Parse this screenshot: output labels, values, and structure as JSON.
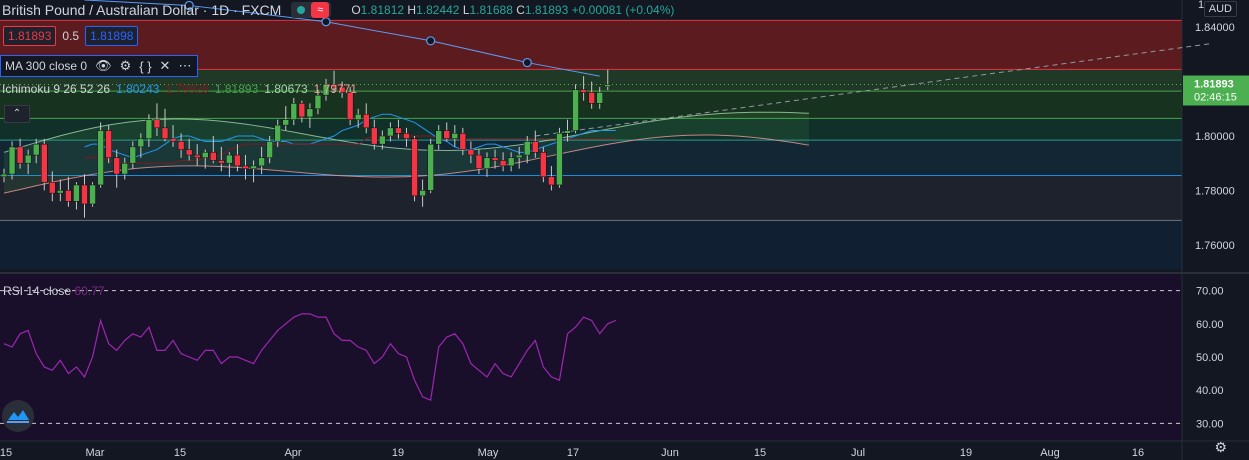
{
  "header": {
    "symbol": "British Pound / Australian Dollar · 1D · FXCM",
    "open": "1.81812",
    "high": "1.82442",
    "low": "1.81688",
    "close": "1.81893",
    "change": "+0.00081 (+0.04%)",
    "o_label": "O",
    "h_label": "H",
    "l_label": "L",
    "c_label": "C",
    "wave_glyph": "≈"
  },
  "trade": {
    "sell_price": "1.81893",
    "spread": "0.5",
    "buy_price": "1.81898"
  },
  "ma": {
    "label": "MA 300 close 0",
    "icons": [
      "eye-icon",
      "gear-icon",
      "braces-icon",
      "close-icon",
      "more-icon"
    ],
    "icon_glyphs": [
      "👁",
      "⚙",
      "{ }",
      "✕",
      "⋯"
    ]
  },
  "ichimoku": {
    "label": "Ichimoku 9 26 52 26",
    "values": [
      {
        "v": "1.80243",
        "color": "#2196f3"
      },
      {
        "v": "1.79926",
        "color": "#801922"
      },
      {
        "v": "1.81893",
        "color": "#43a047"
      },
      {
        "v": "1.80673",
        "color": "#a5d6a7"
      },
      {
        "v": "1.79771",
        "color": "#ef9a9a"
      }
    ]
  },
  "collapse_glyph": "⌃",
  "rsi": {
    "label": "RSI 14 close",
    "value": "60.77",
    "levels": [
      "70.00",
      "60.00",
      "50.00",
      "40.00",
      "30.00"
    ]
  },
  "price_axis": {
    "labels": [
      "1.84000",
      "1.82000",
      "1.80000",
      "1.78000",
      "1.76000"
    ],
    "current_price": "1.81893",
    "countdown": "02:46:15",
    "top_partial": "1."
  },
  "time_axis": {
    "labels": [
      "15",
      "Mar",
      "15",
      "Apr",
      "19",
      "May",
      "17",
      "Jun",
      "15",
      "Jul",
      "19",
      "Aug",
      "16"
    ]
  },
  "currency": "AUD",
  "colors": {
    "bg": "#131722",
    "up": "#26a69a",
    "down": "#ef5350",
    "candle_up": "#4caf50",
    "candle_down": "#f23645",
    "ma": "#5b9cf6",
    "rsi": "#9c27b0",
    "tenkan": "#2196f3",
    "kijun": "#801922",
    "senkou_a": "#a5d6a7",
    "senkou_b": "#ef9a9a"
  },
  "chart_data": {
    "type": "candlestick",
    "price_range": [
      1.75,
      1.85
    ],
    "rsi_range": [
      25,
      75
    ],
    "candles": [
      [
        1.785,
        1.788,
        1.783,
        1.786
      ],
      [
        1.786,
        1.798,
        1.784,
        1.796
      ],
      [
        1.796,
        1.799,
        1.788,
        1.79
      ],
      [
        1.79,
        1.795,
        1.786,
        1.793
      ],
      [
        1.793,
        1.799,
        1.79,
        1.797
      ],
      [
        1.797,
        1.799,
        1.78,
        1.783
      ],
      [
        1.783,
        1.787,
        1.776,
        1.779
      ],
      [
        1.779,
        1.784,
        1.776,
        1.78
      ],
      [
        1.78,
        1.785,
        1.774,
        1.776
      ],
      [
        1.776,
        1.783,
        1.773,
        1.782
      ],
      [
        1.782,
        1.786,
        1.77,
        1.775
      ],
      [
        1.775,
        1.783,
        1.774,
        1.782
      ],
      [
        1.782,
        1.805,
        1.781,
        1.802
      ],
      [
        1.802,
        1.804,
        1.79,
        1.792
      ],
      [
        1.792,
        1.795,
        1.781,
        1.786
      ],
      [
        1.786,
        1.792,
        1.784,
        1.79
      ],
      [
        1.79,
        1.798,
        1.788,
        1.796
      ],
      [
        1.796,
        1.801,
        1.792,
        1.799
      ],
      [
        1.799,
        1.808,
        1.796,
        1.806
      ],
      [
        1.806,
        1.812,
        1.8,
        1.803
      ],
      [
        1.803,
        1.81,
        1.798,
        1.799
      ],
      [
        1.799,
        1.804,
        1.796,
        1.798
      ],
      [
        1.798,
        1.801,
        1.792,
        1.795
      ],
      [
        1.795,
        1.799,
        1.791,
        1.793
      ],
      [
        1.793,
        1.797,
        1.789,
        1.792
      ],
      [
        1.792,
        1.795,
        1.788,
        1.794
      ],
      [
        1.794,
        1.8,
        1.79,
        1.791
      ],
      [
        1.791,
        1.796,
        1.787,
        1.79
      ],
      [
        1.79,
        1.794,
        1.785,
        1.793
      ],
      [
        1.793,
        1.797,
        1.787,
        1.789
      ],
      [
        1.789,
        1.793,
        1.784,
        1.788
      ],
      [
        1.788,
        1.791,
        1.783,
        1.789
      ],
      [
        1.789,
        1.796,
        1.786,
        1.792
      ],
      [
        1.792,
        1.8,
        1.79,
        1.798
      ],
      [
        1.798,
        1.806,
        1.796,
        1.804
      ],
      [
        1.804,
        1.811,
        1.802,
        1.806
      ],
      [
        1.806,
        1.814,
        1.804,
        1.812
      ],
      [
        1.812,
        1.813,
        1.805,
        1.807
      ],
      [
        1.807,
        1.812,
        1.803,
        1.81
      ],
      [
        1.81,
        1.817,
        1.808,
        1.815
      ],
      [
        1.815,
        1.821,
        1.813,
        1.819
      ],
      [
        1.819,
        1.824,
        1.816,
        1.818
      ],
      [
        1.818,
        1.82,
        1.814,
        1.816
      ],
      [
        1.816,
        1.818,
        1.804,
        1.806
      ],
      [
        1.806,
        1.81,
        1.803,
        1.808
      ],
      [
        1.808,
        1.812,
        1.801,
        1.803
      ],
      [
        1.803,
        1.806,
        1.795,
        1.797
      ],
      [
        1.797,
        1.802,
        1.795,
        1.8
      ],
      [
        1.8,
        1.805,
        1.798,
        1.803
      ],
      [
        1.803,
        1.806,
        1.799,
        1.801
      ],
      [
        1.801,
        1.803,
        1.796,
        1.799
      ],
      [
        1.799,
        1.8,
        1.776,
        1.778
      ],
      [
        1.778,
        1.784,
        1.774,
        1.78
      ],
      [
        1.78,
        1.799,
        1.779,
        1.797
      ],
      [
        1.797,
        1.804,
        1.795,
        1.802
      ],
      [
        1.802,
        1.805,
        1.798,
        1.799
      ],
      [
        1.799,
        1.804,
        1.796,
        1.801
      ],
      [
        1.801,
        1.803,
        1.793,
        1.795
      ],
      [
        1.795,
        1.798,
        1.79,
        1.793
      ],
      [
        1.793,
        1.795,
        1.786,
        1.788
      ],
      [
        1.788,
        1.794,
        1.785,
        1.792
      ],
      [
        1.792,
        1.795,
        1.788,
        1.791
      ],
      [
        1.791,
        1.794,
        1.787,
        1.789
      ],
      [
        1.789,
        1.794,
        1.787,
        1.792
      ],
      [
        1.792,
        1.796,
        1.788,
        1.793
      ],
      [
        1.793,
        1.8,
        1.79,
        1.798
      ],
      [
        1.798,
        1.802,
        1.792,
        1.794
      ],
      [
        1.794,
        1.796,
        1.783,
        1.785
      ],
      [
        1.785,
        1.789,
        1.78,
        1.782
      ],
      [
        1.782,
        1.803,
        1.781,
        1.801
      ],
      [
        1.801,
        1.806,
        1.798,
        1.802
      ],
      [
        1.802,
        1.819,
        1.801,
        1.817
      ],
      [
        1.817,
        1.822,
        1.813,
        1.816
      ],
      [
        1.816,
        1.82,
        1.81,
        1.812
      ],
      [
        1.812,
        1.818,
        1.81,
        1.816
      ],
      [
        1.8181,
        1.8244,
        1.8169,
        1.8189
      ]
    ],
    "rsi_values": [
      54,
      53,
      57,
      58,
      51,
      47,
      46,
      49,
      45,
      47,
      44,
      50,
      61,
      54,
      52,
      55,
      57,
      56,
      59,
      52,
      52,
      55,
      51,
      50,
      49,
      52,
      52,
      48,
      50,
      50,
      49,
      48,
      52,
      55,
      58,
      60,
      62,
      63,
      63,
      62,
      62,
      57,
      55,
      55,
      53,
      52,
      48,
      50,
      54,
      51,
      50,
      43,
      38,
      37,
      53,
      56,
      57,
      54,
      48,
      46,
      44,
      48,
      45,
      44,
      48,
      52,
      55,
      47,
      44,
      43,
      57,
      59,
      62,
      61,
      57,
      60,
      61
    ],
    "ma_points": [
      [
        1.85,
        0
      ],
      [
        1.848,
        13
      ],
      [
        1.842,
        30
      ],
      [
        1.835,
        43
      ],
      [
        1.827,
        55
      ],
      [
        1.822,
        64
      ]
    ],
    "trendline": [
      [
        1.8,
        66
      ],
      [
        1.834,
        150
      ]
    ],
    "tenkan": [
      1.796,
      1.797,
      1.797,
      1.795,
      1.794,
      1.793,
      1.792,
      1.793,
      1.794,
      1.795,
      1.797,
      1.799,
      1.8,
      1.8,
      1.799,
      1.798,
      1.798,
      1.798,
      1.799,
      1.8,
      1.8,
      1.8,
      1.799,
      1.798,
      1.798,
      1.798,
      1.797,
      1.797,
      1.797,
      1.798,
      1.799,
      1.8,
      1.802,
      1.803,
      1.804,
      1.806,
      1.807,
      1.808,
      1.808,
      1.807,
      1.806,
      1.805,
      1.803,
      1.801,
      1.799,
      1.798,
      1.796,
      1.795,
      1.795,
      1.796,
      1.797,
      1.797,
      1.796,
      1.795,
      1.794,
      1.794,
      1.795,
      1.796,
      1.797,
      1.798,
      1.799,
      1.8,
      1.801,
      1.802,
      1.802,
      1.802,
      1.802
    ],
    "kijun": [
      1.792,
      1.792,
      1.792,
      1.791,
      1.79,
      1.79,
      1.79,
      1.79,
      1.79,
      1.79,
      1.79,
      1.79,
      1.791,
      1.791,
      1.791,
      1.792,
      1.792,
      1.793,
      1.795,
      1.796,
      1.797,
      1.797,
      1.797,
      1.797,
      1.797,
      1.797,
      1.797,
      1.797,
      1.797,
      1.797,
      1.797,
      1.797,
      1.797,
      1.797,
      1.797,
      1.799,
      1.8,
      1.8,
      1.8,
      1.8,
      1.8,
      1.8,
      1.8,
      1.8,
      1.799,
      1.799,
      1.799,
      1.799,
      1.799,
      1.799,
      1.799,
      1.799,
      1.799,
      1.799,
      1.799,
      1.799,
      1.799,
      1.799,
      1.799,
      1.799,
      1.799,
      1.799,
      1.799,
      1.799,
      1.799,
      1.799,
      1.799
    ],
    "price_bands": [
      {
        "from": 1.8425,
        "to": 1.8245,
        "color": "#5c1b1f"
      },
      {
        "from": 1.8245,
        "to": 1.8165,
        "color": "#203826"
      },
      {
        "from": 1.8165,
        "to": 1.8065,
        "color": "#17321f"
      },
      {
        "from": 1.8065,
        "to": 1.7985,
        "color": "#12302a"
      },
      {
        "from": 1.7985,
        "to": 1.7855,
        "color": "#132634"
      },
      {
        "from": 1.7855,
        "to": 1.769,
        "color": "#1e222d"
      },
      {
        "from": 1.769,
        "to": 1.751,
        "color": "#102032"
      }
    ],
    "band_lines": [
      1.8425,
      1.8245,
      1.8165,
      1.8065,
      1.7985,
      1.7855,
      1.769
    ]
  }
}
